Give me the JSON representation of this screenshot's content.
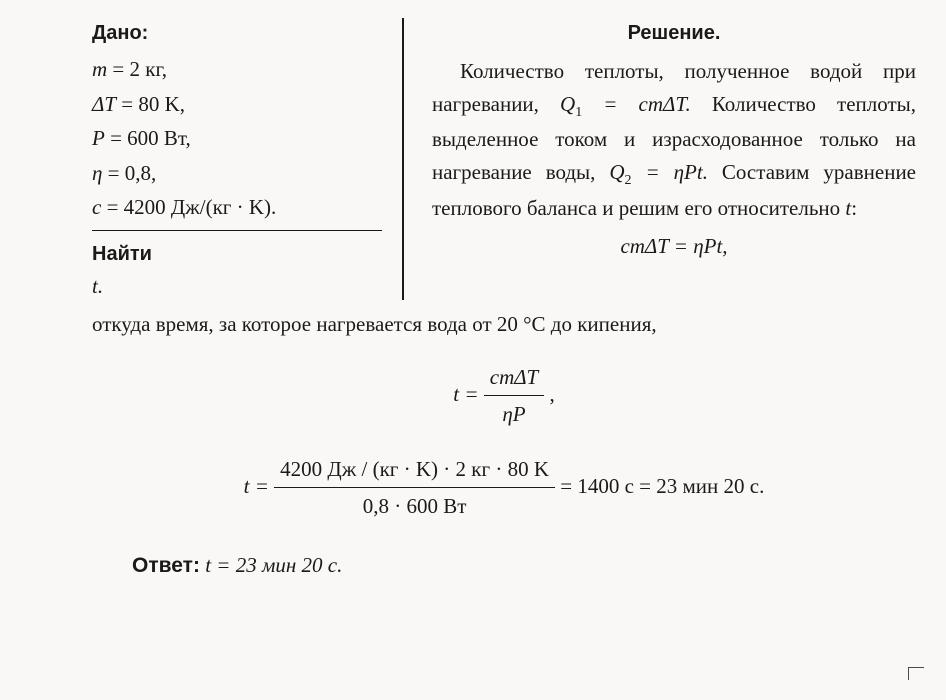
{
  "given": {
    "title": "Дано:",
    "lines": [
      {
        "sym": "m",
        "eq": " = 2 ",
        "unit": "кг,"
      },
      {
        "sym": "ΔT",
        "eq": " = 80 ",
        "unit": "K,"
      },
      {
        "sym": "P",
        "eq": " = 600 ",
        "unit": "Вт,"
      },
      {
        "sym": "η",
        "eq": " = 0,8,",
        "unit": ""
      },
      {
        "sym": "c",
        "eq": " = 4200 ",
        "unit": "Дж/(кг · K)."
      }
    ],
    "find_title": "Найти",
    "find_var": "t."
  },
  "solution": {
    "title": "Решение.",
    "para1a": "Количество теплоты, полу­ченное водой при нагревании, ",
    "q1_formula_pre": "Q",
    "q1_sub": "1",
    "q1_formula_post": " = cmΔT. ",
    "para1b": "Количество тепло­ты, выделенное током и израс­ходованное только на нагрева­ние воды, ",
    "q2_formula_pre": "Q",
    "q2_sub": "2",
    "q2_formula_post": " = ηPt. ",
    "para1c": "Составим уравнение теплового баланса и решим его относительно ",
    "tvar": "t",
    "colon": ":",
    "balance_eq": "cmΔT = ηPt,",
    "para2": "откуда время, за которое нагревается вода от 20 °C до кипения,",
    "main_formula": {
      "lhs": "t = ",
      "num": "cmΔT",
      "den": "ηP",
      "post": " ,"
    },
    "calc_formula": {
      "lhs": "t = ",
      "num": "4200 Дж / (кг · K) · 2 кг · 80 K",
      "den": "0,8 · 600 Вт",
      "rhs": " = 1400 c = 23 мин 20 c."
    },
    "answer_label": "Ответ:",
    "answer_text": " t = 23 мин 20 c."
  },
  "style": {
    "background": "#f9f8f6",
    "text_color": "#1a1a1a",
    "border_color": "#1a1a1a",
    "font_body": "Georgia, Times New Roman, serif",
    "font_bold": "Verdana, Geneva, sans-serif",
    "font_size_body": 21,
    "font_size_heading": 20
  }
}
